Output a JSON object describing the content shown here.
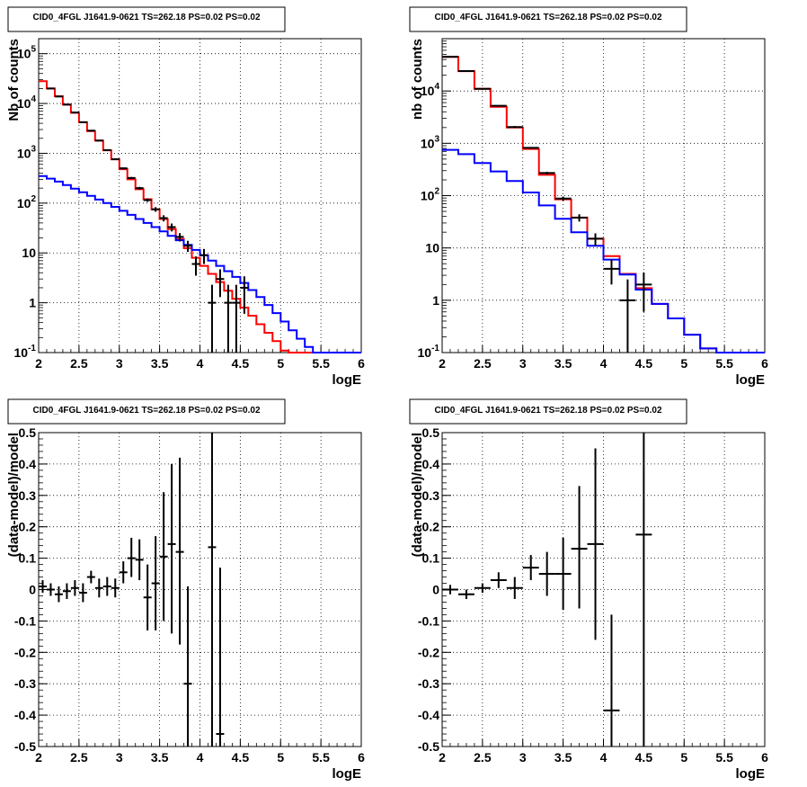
{
  "colors": {
    "data": "#000000",
    "total_model": "#ff0000",
    "source_model": "#0000ff",
    "grid": "#000000"
  },
  "chart_data": [
    {
      "type": "line",
      "panel": "top-left",
      "title": "CID0_4FGL J1641.9-0621 TS=262.18 PS=0.02 PS=0.02",
      "xlabel": "logE",
      "ylabel": "Nb of counts",
      "xlim": [
        2,
        6
      ],
      "ylim": [
        0.1,
        200000
      ],
      "yscale": "log",
      "grid": true,
      "xticks": [
        "2",
        "2.5",
        "3",
        "3.5",
        "4",
        "4.5",
        "5",
        "5.5",
        "6"
      ],
      "yticks": [
        "10^-1",
        "1",
        "10",
        "10^2",
        "10^3",
        "10^4",
        "10^5"
      ],
      "bin_edges": [
        2,
        2.1,
        2.2,
        2.3,
        2.4,
        2.5,
        2.6,
        2.7,
        2.8,
        2.9,
        3,
        3.1,
        3.2,
        3.3,
        3.4,
        3.5,
        3.6,
        3.7,
        3.8,
        3.9,
        4,
        4.1,
        4.2,
        4.3,
        4.4,
        4.5,
        4.6,
        4.7,
        4.8,
        4.9,
        5,
        5.1,
        5.2,
        5.3,
        5.4,
        5.5,
        5.6,
        5.7,
        5.8,
        5.9,
        6
      ],
      "series": [
        {
          "values": [
            28000,
            20000,
            14000,
            9500,
            6500,
            4200,
            2800,
            1800,
            1150,
            760,
            480,
            300,
            190,
            120,
            75,
            48,
            30,
            19,
            12.5,
            8,
            5.5,
            3.8,
            2.6,
            1.75,
            1.2,
            0.8,
            0.55,
            0.37,
            0.25,
            0.17,
            0.11,
            0.08,
            0.08,
            0.08,
            0.08,
            0.08,
            0.08,
            0.08,
            0.08,
            0.08
          ]
        },
        {
          "values": [
            350,
            310,
            270,
            230,
            195,
            165,
            140,
            118,
            100,
            84,
            70,
            58,
            48,
            40,
            33,
            27,
            22,
            18,
            14.5,
            11.5,
            9,
            7,
            5.5,
            4.3,
            3.3,
            2.5,
            1.8,
            1.3,
            0.9,
            0.62,
            0.42,
            0.28,
            0.19,
            0.13,
            0.1,
            0.1,
            0.1,
            0.1,
            0.1,
            0.1
          ]
        }
      ],
      "points": [
        {
          "x": 2.15,
          "y": 20000,
          "lo": 19700,
          "hi": 20300
        },
        {
          "x": 2.25,
          "y": 13800,
          "lo": 13600,
          "hi": 14000
        },
        {
          "x": 2.35,
          "y": 9500,
          "lo": 9300,
          "hi": 9700
        },
        {
          "x": 2.45,
          "y": 6600,
          "lo": 6450,
          "hi": 6750
        },
        {
          "x": 2.55,
          "y": 4200,
          "lo": 4100,
          "hi": 4300
        },
        {
          "x": 2.65,
          "y": 2850,
          "lo": 2790,
          "hi": 2910
        },
        {
          "x": 2.75,
          "y": 1800,
          "lo": 1760,
          "hi": 1840
        },
        {
          "x": 2.85,
          "y": 1160,
          "lo": 1130,
          "hi": 1190
        },
        {
          "x": 2.95,
          "y": 760,
          "lo": 735,
          "hi": 785
        },
        {
          "x": 3.05,
          "y": 500,
          "lo": 480,
          "hi": 520
        },
        {
          "x": 3.15,
          "y": 320,
          "lo": 305,
          "hi": 335
        },
        {
          "x": 3.25,
          "y": 200,
          "lo": 188,
          "hi": 212
        },
        {
          "x": 3.35,
          "y": 115,
          "lo": 106,
          "hi": 124
        },
        {
          "x": 3.45,
          "y": 75,
          "lo": 67,
          "hi": 83
        },
        {
          "x": 3.55,
          "y": 50,
          "lo": 43,
          "hi": 57
        },
        {
          "x": 3.65,
          "y": 33,
          "lo": 27,
          "hi": 39
        },
        {
          "x": 3.75,
          "y": 21,
          "lo": 17,
          "hi": 25
        },
        {
          "x": 3.85,
          "y": 14,
          "lo": 10.5,
          "hi": 17.5
        },
        {
          "x": 3.95,
          "y": 6,
          "lo": 3.5,
          "hi": 8.5
        },
        {
          "x": 4.05,
          "y": 9,
          "lo": 6,
          "hi": 12
        },
        {
          "x": 4.15,
          "y": 1,
          "lo": 0.1,
          "hi": 2.3
        },
        {
          "x": 4.25,
          "y": 3,
          "lo": 1.3,
          "hi": 4.7
        },
        {
          "x": 4.35,
          "y": 1,
          "lo": 0.1,
          "hi": 2.3
        },
        {
          "x": 4.45,
          "y": 1,
          "lo": 0.1,
          "hi": 2.3
        },
        {
          "x": 4.55,
          "y": 2,
          "lo": 0.6,
          "hi": 3.4
        }
      ]
    },
    {
      "type": "line",
      "panel": "top-right",
      "title": "CID0_4FGL J1641.9-0621 TS=262.18 PS=0.02 PS=0.02",
      "xlabel": "logE",
      "ylabel": "nb of counts",
      "xlim": [
        2,
        6
      ],
      "ylim": [
        0.1,
        100000
      ],
      "yscale": "log",
      "grid": true,
      "xticks": [
        "2",
        "2.5",
        "3",
        "3.5",
        "4",
        "4.5",
        "5",
        "5.5",
        "6"
      ],
      "yticks": [
        "10^-1",
        "1",
        "10",
        "10^2",
        "10^3",
        "10^4"
      ],
      "bin_edges": [
        2,
        2.2,
        2.4,
        2.6,
        2.8,
        3,
        3.2,
        3.4,
        3.6,
        3.8,
        4,
        4.2,
        4.4,
        4.6,
        4.8,
        5,
        5.2,
        5.4,
        5.6,
        5.8,
        6
      ],
      "series": [
        {
          "values": [
            45000,
            24000,
            11000,
            5000,
            2000,
            780,
            250,
            85,
            38,
            15,
            7,
            3.2,
            1.7,
            0.85,
            0.45,
            0.22,
            0.12,
            0.1,
            0.1,
            0.1
          ]
        },
        {
          "values": [
            750,
            620,
            420,
            290,
            190,
            115,
            65,
            36,
            20,
            11,
            6,
            3.1,
            1.6,
            0.85,
            0.45,
            0.22,
            0.12,
            0.1,
            0.1,
            0.1
          ]
        }
      ],
      "points": [
        {
          "x": 2.1,
          "y": 45000,
          "lo": 44500,
          "hi": 45500
        },
        {
          "x": 2.3,
          "y": 24000,
          "lo": 23600,
          "hi": 24400
        },
        {
          "x": 2.5,
          "y": 11000,
          "lo": 10800,
          "hi": 11200
        },
        {
          "x": 2.7,
          "y": 5200,
          "lo": 5050,
          "hi": 5350
        },
        {
          "x": 2.9,
          "y": 2050,
          "lo": 1960,
          "hi": 2140
        },
        {
          "x": 3.1,
          "y": 820,
          "lo": 790,
          "hi": 850
        },
        {
          "x": 3.3,
          "y": 270,
          "lo": 255,
          "hi": 285
        },
        {
          "x": 3.5,
          "y": 88,
          "lo": 80,
          "hi": 96
        },
        {
          "x": 3.7,
          "y": 38,
          "lo": 32,
          "hi": 44
        },
        {
          "x": 3.9,
          "y": 15,
          "lo": 11,
          "hi": 19
        },
        {
          "x": 4.1,
          "y": 4,
          "lo": 2,
          "hi": 6
        },
        {
          "x": 4.3,
          "y": 1,
          "lo": 0.1,
          "hi": 2.5
        },
        {
          "x": 4.5,
          "y": 2,
          "lo": 0.6,
          "hi": 3.4
        }
      ]
    },
    {
      "type": "scatter",
      "panel": "bottom-left",
      "title": "CID0_4FGL J1641.9-0621 TS=262.18 PS=0.02 PS=0.02",
      "xlabel": "logE",
      "ylabel": "(data-model)/model",
      "xlim": [
        2,
        6
      ],
      "ylim": [
        -0.5,
        0.5
      ],
      "grid": true,
      "xticks": [
        "2",
        "2.5",
        "3",
        "3.5",
        "4",
        "4.5",
        "5",
        "5.5",
        "6"
      ],
      "yticks": [
        "-0.5",
        "-0.4",
        "-0.3",
        "-0.2",
        "-0.1",
        "0",
        "0.1",
        "0.2",
        "0.3",
        "0.4",
        "0.5"
      ],
      "points": [
        {
          "x": 2.05,
          "y": 0.01,
          "lo": -0.01,
          "hi": 0.03
        },
        {
          "x": 2.15,
          "y": 0.0,
          "lo": -0.02,
          "hi": 0.02
        },
        {
          "x": 2.25,
          "y": -0.015,
          "lo": -0.04,
          "hi": 0.01
        },
        {
          "x": 2.35,
          "y": -0.005,
          "lo": -0.03,
          "hi": 0.02
        },
        {
          "x": 2.45,
          "y": 0.005,
          "lo": -0.02,
          "hi": 0.03
        },
        {
          "x": 2.55,
          "y": -0.01,
          "lo": -0.04,
          "hi": 0.02
        },
        {
          "x": 2.65,
          "y": 0.04,
          "lo": 0.02,
          "hi": 0.06
        },
        {
          "x": 2.75,
          "y": 0.005,
          "lo": -0.025,
          "hi": 0.035
        },
        {
          "x": 2.85,
          "y": 0.01,
          "lo": -0.02,
          "hi": 0.04
        },
        {
          "x": 2.95,
          "y": 0.005,
          "lo": -0.025,
          "hi": 0.035
        },
        {
          "x": 3.05,
          "y": 0.055,
          "lo": 0.02,
          "hi": 0.09
        },
        {
          "x": 3.15,
          "y": 0.1,
          "lo": 0.04,
          "hi": 0.165
        },
        {
          "x": 3.25,
          "y": 0.095,
          "lo": 0.03,
          "hi": 0.16
        },
        {
          "x": 3.35,
          "y": -0.025,
          "lo": -0.13,
          "hi": 0.08
        },
        {
          "x": 3.45,
          "y": 0.02,
          "lo": -0.13,
          "hi": 0.17
        },
        {
          "x": 3.55,
          "y": 0.105,
          "lo": -0.1,
          "hi": 0.31
        },
        {
          "x": 3.65,
          "y": 0.145,
          "lo": -0.14,
          "hi": 0.4
        },
        {
          "x": 3.75,
          "y": 0.12,
          "lo": -0.175,
          "hi": 0.42
        },
        {
          "x": 3.85,
          "y": -0.3,
          "lo": -0.5,
          "hi": 0.01
        },
        {
          "x": 4.15,
          "y": 0.135,
          "lo": -0.5,
          "hi": 0.5
        },
        {
          "x": 4.25,
          "y": -0.46,
          "lo": -0.5,
          "hi": 0.07
        }
      ]
    },
    {
      "type": "scatter",
      "panel": "bottom-right",
      "title": "CID0_4FGL J1641.9-0621 TS=262.18 PS=0.02 PS=0.02",
      "xlabel": "logE",
      "ylabel": "(data-model)/model",
      "xlim": [
        2,
        6
      ],
      "ylim": [
        -0.5,
        0.5
      ],
      "grid": true,
      "xticks": [
        "2",
        "2.5",
        "3",
        "3.5",
        "4",
        "4.5",
        "5",
        "5.5",
        "6"
      ],
      "yticks": [
        "-0.5",
        "-0.4",
        "-0.3",
        "-0.2",
        "-0.1",
        "0",
        "0.1",
        "0.2",
        "0.3",
        "0.4",
        "0.5"
      ],
      "points": [
        {
          "x": 2.1,
          "y": 0.0,
          "lo": -0.015,
          "hi": 0.015
        },
        {
          "x": 2.3,
          "y": -0.015,
          "lo": -0.03,
          "hi": 0.0
        },
        {
          "x": 2.5,
          "y": 0.005,
          "lo": -0.01,
          "hi": 0.02
        },
        {
          "x": 2.7,
          "y": 0.03,
          "lo": 0.005,
          "hi": 0.055
        },
        {
          "x": 2.9,
          "y": 0.005,
          "lo": -0.03,
          "hi": 0.04
        },
        {
          "x": 3.1,
          "y": 0.07,
          "lo": 0.03,
          "hi": 0.11
        },
        {
          "x": 3.3,
          "y": 0.05,
          "lo": -0.02,
          "hi": 0.12
        },
        {
          "x": 3.5,
          "y": 0.05,
          "lo": -0.065,
          "hi": 0.165
        },
        {
          "x": 3.7,
          "y": 0.13,
          "lo": -0.06,
          "hi": 0.33
        },
        {
          "x": 3.9,
          "y": 0.145,
          "lo": -0.16,
          "hi": 0.45
        },
        {
          "x": 4.1,
          "y": -0.385,
          "lo": -0.5,
          "hi": -0.08
        },
        {
          "x": 4.5,
          "y": 0.175,
          "lo": -0.5,
          "hi": 0.5
        }
      ]
    }
  ]
}
